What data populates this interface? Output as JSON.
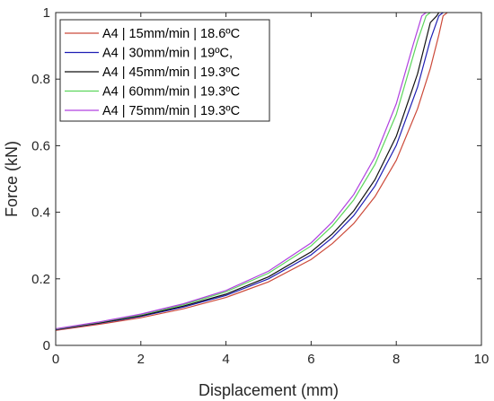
{
  "chart_data": {
    "type": "line",
    "title": "",
    "xlabel": "Displacement (mm)",
    "ylabel": "Force (kN)",
    "xlim": [
      0,
      10
    ],
    "ylim": [
      0,
      1
    ],
    "xticks": [
      0,
      2,
      4,
      6,
      8,
      10
    ],
    "yticks": [
      0,
      0.2,
      0.4,
      0.6,
      0.8,
      1
    ],
    "xtick_labels": [
      "0",
      "2",
      "4",
      "6",
      "8",
      "10"
    ],
    "ytick_labels": [
      "0",
      "0.2",
      "0.4",
      "0.6",
      "0.8",
      "1"
    ],
    "grid": false,
    "legend_position": "top-left",
    "series": [
      {
        "name": "A4 | 15mm/min | 18.6ºC",
        "color": "#cc4a3a",
        "x": [
          0.0,
          1.0,
          2.0,
          3.0,
          4.0,
          5.0,
          6.0,
          6.5,
          7.0,
          7.5,
          8.0,
          8.5,
          8.8,
          9.0,
          9.1,
          9.2
        ],
        "y": [
          0.045,
          0.063,
          0.083,
          0.11,
          0.144,
          0.191,
          0.258,
          0.306,
          0.366,
          0.447,
          0.556,
          0.711,
          0.832,
          0.933,
          0.99,
          1.0
        ]
      },
      {
        "name": "A4 | 30mm/min | 19ºC,",
        "color": "#1f1fb4",
        "x": [
          0.0,
          1.0,
          2.0,
          3.0,
          4.0,
          5.0,
          6.0,
          6.5,
          7.0,
          7.5,
          8.0,
          8.5,
          8.8,
          9.0,
          9.1
        ],
        "y": [
          0.047,
          0.066,
          0.087,
          0.115,
          0.15,
          0.2,
          0.272,
          0.324,
          0.39,
          0.479,
          0.601,
          0.776,
          0.918,
          0.99,
          1.0
        ]
      },
      {
        "name": "A4 | 45mm/min | 19.3ºC",
        "color": "#111111",
        "x": [
          0.0,
          1.0,
          2.0,
          3.0,
          4.0,
          5.0,
          6.0,
          6.5,
          7.0,
          7.5,
          8.0,
          8.5,
          8.8,
          8.95,
          9.0
        ],
        "y": [
          0.048,
          0.067,
          0.089,
          0.118,
          0.154,
          0.206,
          0.281,
          0.335,
          0.404,
          0.498,
          0.628,
          0.816,
          0.97,
          0.99,
          1.0
        ]
      },
      {
        "name": "A4 | 60mm/min | 19.3ºC",
        "color": "#5cd65c",
        "x": [
          0.0,
          1.0,
          2.0,
          3.0,
          4.0,
          5.0,
          6.0,
          6.5,
          7.0,
          7.5,
          8.0,
          8.5,
          8.7,
          8.8
        ],
        "y": [
          0.049,
          0.069,
          0.092,
          0.122,
          0.161,
          0.217,
          0.299,
          0.359,
          0.437,
          0.544,
          0.694,
          0.915,
          0.99,
          1.0
        ]
      },
      {
        "name": "A4 | 75mm/min | 19.3ºC",
        "color": "#b040e0",
        "x": [
          0.0,
          1.0,
          2.0,
          3.0,
          4.0,
          5.0,
          6.0,
          6.5,
          7.0,
          7.5,
          8.0,
          8.4,
          8.6,
          8.7
        ],
        "y": [
          0.05,
          0.07,
          0.094,
          0.125,
          0.165,
          0.223,
          0.308,
          0.371,
          0.453,
          0.566,
          0.726,
          0.905,
          0.99,
          1.0
        ]
      }
    ]
  }
}
